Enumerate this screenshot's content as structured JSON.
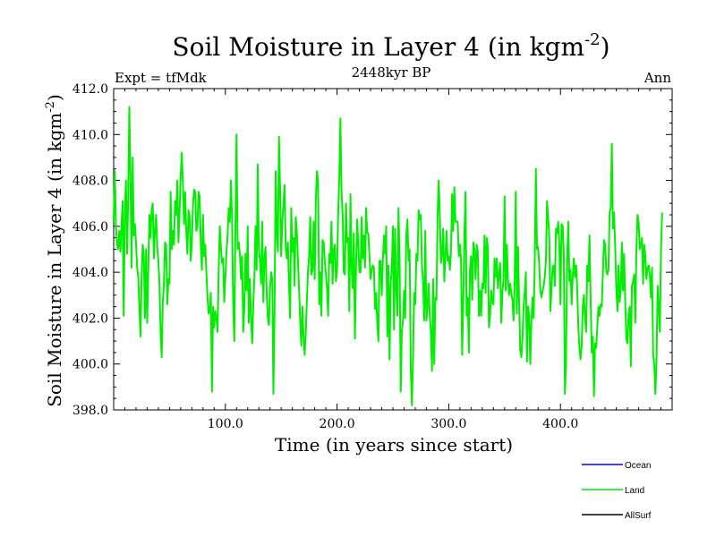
{
  "chart_data": {
    "type": "line",
    "title": "Soil Moisture in Layer 4 (in kgm",
    "title_sup": "-2",
    "title_close": ")",
    "subtitle": "2448kyr BP",
    "left_label": "Expt = tfMdk",
    "right_label": "Ann",
    "xlabel": "Time (in years since start)",
    "ylabel": "Soil Moisture in Layer 4 (in kgm",
    "ylabel_sup": "-2",
    "ylabel_close": ")",
    "xlim": [
      0,
      500
    ],
    "ylim": [
      398.0,
      412.0
    ],
    "x_ticks": [
      100,
      200,
      300,
      400
    ],
    "x_tick_labels": [
      "100.0",
      "200.0",
      "300.0",
      "400.0"
    ],
    "y_ticks": [
      398,
      400,
      402,
      404,
      406,
      408,
      410,
      412
    ],
    "y_tick_labels": [
      "398.0",
      "400.0",
      "402.0",
      "404.0",
      "406.0",
      "408.0",
      "410.0",
      "412.0"
    ],
    "legend": [
      {
        "name": "Ocean",
        "color": "#0000ff"
      },
      {
        "name": "Land",
        "color": "#00ee00"
      },
      {
        "name": "AllSurf",
        "color": "#000000"
      }
    ],
    "series": [
      {
        "name": "Land",
        "color": "#00ee00",
        "x_start": 0,
        "x_step": 1,
        "values": [
          406.2,
          408.4,
          406.1,
          405.2,
          405.0,
          405.8,
          404.9,
          406.0,
          407.1,
          402.1,
          406.6,
          408.0,
          404.8,
          407.2,
          411.2,
          408.3,
          404.2,
          409.0,
          405.6,
          406.1,
          405.3,
          404.2,
          403.8,
          402.5,
          401.2,
          403.8,
          405.2,
          404.7,
          402.0,
          405.0,
          401.8,
          404.1,
          406.5,
          405.5,
          406.7,
          407.0,
          404.6,
          405.8,
          406.5,
          405.1,
          404.5,
          403.5,
          401.4,
          400.3,
          402.7,
          403.5,
          405.3,
          405.2,
          402.6,
          403.7,
          403.5,
          407.5,
          405.0,
          405.8,
          405.2,
          407.1,
          406.5,
          408.0,
          405.3,
          406.6,
          408.2,
          409.2,
          407.8,
          406.1,
          407.5,
          405.8,
          404.8,
          406.7,
          406.4,
          404.5,
          405.3,
          406.9,
          407.6,
          407.5,
          405.8,
          406.0,
          407.5,
          407.3,
          405.2,
          404.1,
          406.5,
          404.7,
          405.2,
          404.0,
          402.9,
          402.2,
          402.3,
          403.1,
          398.8,
          402.5,
          401.6,
          402.3,
          402.0,
          401.4,
          404.0,
          406.0,
          405.1,
          404.4,
          404.6,
          402.7,
          403.8,
          404.9,
          405.6,
          406.8,
          406.2,
          408.0,
          406.3,
          402.6,
          401.0,
          405.9,
          410.0,
          405.0,
          405.3,
          404.8,
          403.7,
          404.7,
          401.4,
          402.5,
          404.8,
          403.2,
          406.0,
          401.8,
          403.7,
          402.0,
          400.9,
          402.6,
          403.8,
          406.0,
          404.1,
          408.7,
          405.0,
          404.5,
          403.5,
          406.2,
          402.7,
          404.7,
          405.1,
          403.1,
          402.0,
          401.7,
          403.3,
          404.0,
          403.7,
          398.7,
          402.1,
          408.4,
          405.7,
          404.9,
          409.9,
          407.6,
          404.7,
          406.2,
          407.0,
          407.8,
          405.1,
          404.6,
          405.3,
          403.4,
          402.0,
          406.8,
          404.9,
          405.5,
          403.4,
          406.4,
          405.8,
          404.5,
          403.2,
          401.9,
          400.8,
          402.5,
          401.2,
          400.4,
          401.4,
          402.8,
          404.1,
          404.7,
          406.4,
          403.9,
          404.1,
          406.2,
          403.7,
          407.2,
          408.4,
          408.0,
          402.6,
          404.0,
          402.1,
          405.4,
          405.3,
          404.5,
          403.9,
          403.3,
          402.1,
          404.8,
          404.4,
          406.2,
          403.5,
          405.0,
          405.2,
          403.6,
          404.1,
          406.6,
          408.1,
          410.7,
          407.5,
          406.5,
          404.0,
          403.9,
          407.0,
          405.3,
          405.5,
          402.3,
          407.4,
          404.2,
          403.3,
          405.7,
          401.1,
          404.3,
          406.3,
          405.2,
          404.0,
          404.0,
          406.4,
          404.6,
          405.6,
          404.2,
          406.8,
          405.7,
          405.7,
          404.7,
          403.7,
          404.1,
          404.3,
          404.2,
          402.4,
          403.1,
          401.8,
          401.0,
          404.5,
          404.5,
          403.0,
          404.5,
          405.6,
          404.8,
          406.0,
          401.2,
          404.3,
          400.2,
          403.5,
          404.1,
          406.0,
          401.5,
          405.9,
          403.2,
          402.1,
          406.8,
          404.5,
          398.8,
          401.4,
          401.9,
          403.2,
          402.0,
          405.6,
          406.3,
          404.5,
          405.0,
          399.8,
          398.2,
          400.2,
          403.1,
          402.6,
          404.8,
          404.5,
          406.7,
          406.3,
          406.5,
          404.3,
          403.6,
          401.9,
          405.8,
          401.9,
          402.5,
          403.5,
          402.1,
          401.4,
          399.7,
          403.7,
          400.0,
          402.9,
          402.8,
          406.5,
          408.0,
          406.5,
          404.4,
          404.8,
          405.9,
          403.6,
          404.7,
          405.8,
          404.5,
          404.7,
          404.1,
          404.9,
          407.4,
          405.8,
          407.7,
          406.2,
          406.2,
          406.2,
          404.7,
          405.2,
          404.5,
          400.4,
          402.7,
          405.6,
          407.5,
          402.1,
          402.9,
          400.5,
          404.1,
          404.7,
          402.8,
          405.3,
          405.0,
          403.7,
          405.2,
          404.9,
          402.1,
          403.2,
          402.1,
          403.5,
          403.3,
          405.6,
          403.1,
          405.5,
          405.1,
          401.6,
          402.1,
          403.2,
          402.7,
          402.6,
          404.6,
          403.8,
          404.6,
          403.3,
          403.9,
          404.4,
          401.8,
          403.1,
          403.7,
          407.3,
          403.2,
          405.2,
          403.7,
          403.0,
          403.5,
          403.1,
          402.8,
          401.9,
          403.5,
          407.5,
          402.2,
          405.1,
          402.7,
          400.6,
          400.3,
          401.1,
          402.5,
          403.1,
          404.0,
          400.1,
          402.5,
          402.1,
          400.0,
          401.9,
          402.9,
          402.0,
          404.4,
          408.5,
          405.0,
          405.1,
          404.3,
          403.2,
          402.9,
          403.2,
          403.4,
          403.8,
          404.5,
          407.1,
          406.4,
          405.5,
          402.3,
          403.3,
          404.2,
          404.3,
          403.4,
          405.9,
          405.7,
          406.2,
          405.2,
          402.6,
          406.1,
          406.0,
          404.8,
          398.7,
          400.1,
          404.6,
          406.2,
          403.6,
          404.1,
          402.6,
          403.8,
          404.6,
          403.8,
          404.3,
          403.3,
          401.6,
          400.7,
          400.2,
          400.8,
          402.5,
          403.0,
          402.0,
          401.4,
          404.3,
          403.6,
          405.6,
          402.9,
          400.5,
          401.2,
          398.6,
          400.9,
          400.7,
          401.6,
          402.5,
          402.1,
          402.6,
          402.5,
          404.0,
          405.4,
          405.2,
          404.1,
          403.9,
          404.1,
          406.6,
          406.8,
          409.6,
          405.9,
          406.6,
          405.1,
          403.3,
          402.3,
          404.3,
          402.7,
          403.2,
          405.3,
          403.2,
          404.8,
          402.7,
          401.1,
          400.9,
          402.2,
          402.5,
          399.9,
          403.4,
          403.6,
          403.9,
          401.8,
          405.0,
          406.5,
          406.2,
          405.0,
          405.2,
          405.5,
          403.5,
          405.2,
          404.7,
          403.7,
          404.2,
          404.3,
          403.9,
          402.9,
          404.2,
          400.4,
          400.0,
          398.7,
          400.1,
          403.4,
          402.5,
          401.4,
          404.9,
          406.6
        ]
      },
      {
        "name": "Ocean",
        "color": "#0000ff",
        "values": []
      },
      {
        "name": "AllSurf",
        "color": "#000000",
        "values": []
      }
    ]
  }
}
